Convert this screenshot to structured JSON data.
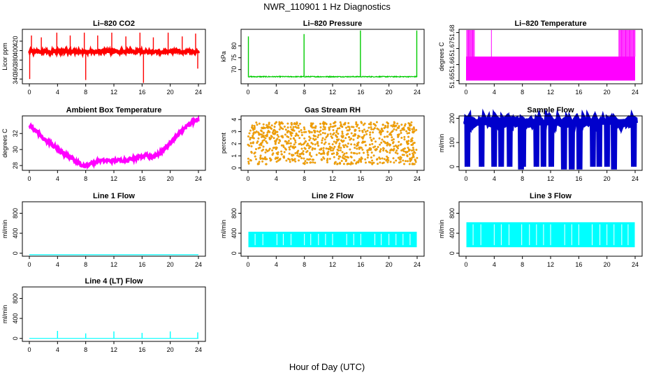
{
  "figure": {
    "title": "NWR_110901  1 Hz Diagnostics",
    "xlabel": "Hour of Day (UTC)"
  },
  "chart_data": [
    {
      "id": "co2",
      "type": "line",
      "title": "Li–820 CO2",
      "ylabel": "Licor ppm",
      "color": "#ff0000",
      "xlim": [
        0,
        24
      ],
      "xticks": [
        0,
        4,
        8,
        12,
        16,
        20,
        24
      ],
      "ylim": [
        330,
        445
      ],
      "yticks": [
        340,
        360,
        380,
        400,
        420
      ],
      "baseline": 398,
      "noise": 3,
      "spikes": [
        {
          "x": 0.05,
          "y": 340
        },
        {
          "x": 0.3,
          "y": 432
        },
        {
          "x": 1.7,
          "y": 428
        },
        {
          "x": 3.9,
          "y": 438
        },
        {
          "x": 5.8,
          "y": 432
        },
        {
          "x": 7.8,
          "y": 438
        },
        {
          "x": 8.0,
          "y": 338
        },
        {
          "x": 9.7,
          "y": 432
        },
        {
          "x": 11.7,
          "y": 438
        },
        {
          "x": 13.7,
          "y": 430
        },
        {
          "x": 15.7,
          "y": 438
        },
        {
          "x": 16.2,
          "y": 332
        },
        {
          "x": 17.6,
          "y": 428
        },
        {
          "x": 19.7,
          "y": 438
        },
        {
          "x": 21.7,
          "y": 430
        },
        {
          "x": 23.6,
          "y": 436
        },
        {
          "x": 23.9,
          "y": 362
        }
      ]
    },
    {
      "id": "pressure",
      "type": "line",
      "title": "Li–820 Pressure",
      "ylabel": "kPa",
      "color": "#00cc00",
      "xlim": [
        0,
        24
      ],
      "xticks": [
        0,
        4,
        8,
        12,
        16,
        20,
        24
      ],
      "ylim": [
        64,
        87
      ],
      "yticks": [
        70,
        75,
        80
      ],
      "baseline": 67,
      "noise": 0.2,
      "spikes": [
        {
          "x": 0.05,
          "y": 84
        },
        {
          "x": 7.95,
          "y": 85
        },
        {
          "x": 15.95,
          "y": 86.5
        },
        {
          "x": 23.95,
          "y": 86.5
        }
      ]
    },
    {
      "id": "licor_temp",
      "type": "area",
      "title": "Li–820 Temperature",
      "ylabel": "degrees C",
      "color": "#ff00ff",
      "xlim": [
        0,
        24
      ],
      "xticks": [
        0,
        4,
        8,
        12,
        16,
        20,
        24
      ],
      "ylim": [
        51.648,
        51.682
      ],
      "yticks": [
        51.65,
        51.66,
        51.67,
        51.68
      ],
      "fill_range": [
        51.65,
        51.665
      ],
      "spike_top": 51.682,
      "spike_windows": [
        [
          0.1,
          1.3
        ],
        [
          3.6,
          3.7
        ],
        [
          21.7,
          24.0
        ]
      ]
    },
    {
      "id": "box_temp",
      "type": "line",
      "title": "Ambient Box Temperature",
      "ylabel": "degrees C",
      "color": "#ff00ff",
      "xlim": [
        0,
        24
      ],
      "xticks": [
        0,
        4,
        8,
        12,
        16,
        20,
        24
      ],
      "ylim": [
        27.4,
        34.2
      ],
      "yticks": [
        28,
        30,
        32
      ],
      "x": [
        0,
        1,
        2,
        3,
        4,
        5,
        6,
        7,
        7.8,
        8.5,
        10,
        12,
        14,
        15.5,
        16.5,
        17.5,
        18.5,
        19.5,
        20.5,
        21.5,
        22.5,
        23.5,
        24
      ],
      "y": [
        33.0,
        32.3,
        31.4,
        30.7,
        30.0,
        29.4,
        28.9,
        28.3,
        27.9,
        28.2,
        28.6,
        28.6,
        28.7,
        29.1,
        29.3,
        29.0,
        29.6,
        30.4,
        31.3,
        32.2,
        33.0,
        33.6,
        33.7
      ],
      "noise": 0.2
    },
    {
      "id": "rh",
      "type": "scatter",
      "title": "Gas Stream RH",
      "ylabel": "percent",
      "color": "#ffa500",
      "edge_color": "#cc8800",
      "xlim": [
        0,
        24
      ],
      "xticks": [
        0,
        4,
        8,
        12,
        16,
        20,
        24
      ],
      "ylim": [
        -0.2,
        4.3
      ],
      "yticks": [
        0,
        1,
        2,
        3,
        4
      ],
      "range": [
        0.3,
        3.8
      ],
      "center": 2.0
    },
    {
      "id": "sample_flow",
      "type": "line",
      "title": "Sample Flow",
      "ylabel": "ml/min",
      "color": "#0000cc",
      "xlim": [
        0,
        24
      ],
      "xticks": [
        0,
        4,
        8,
        12,
        16,
        20,
        24
      ],
      "ylim": [
        -15,
        210
      ],
      "yticks": [
        0,
        100,
        200
      ],
      "baseline": 185,
      "noise": 12,
      "dropouts": [
        0.2,
        2.2,
        4.0,
        5.0,
        6.2,
        7.8,
        8.1,
        10.0,
        11.0,
        12.1,
        13.9,
        15.0,
        16.1,
        18.0,
        18.9,
        20.0,
        21.0,
        23.8
      ]
    },
    {
      "id": "line1",
      "type": "line",
      "title": "Line 1 Flow",
      "ylabel": "ml/min",
      "color": "#00ffff",
      "xlim": [
        0,
        24
      ],
      "xticks": [
        0,
        4,
        8,
        12,
        16,
        20,
        24
      ],
      "ylim": [
        -60,
        1030
      ],
      "yticks": [
        0,
        400,
        800
      ],
      "baseline": -30
    },
    {
      "id": "line2",
      "type": "line",
      "title": "Line 2 Flow",
      "ylabel": "ml/min",
      "color": "#00ffff",
      "xlim": [
        0,
        24
      ],
      "xticks": [
        0,
        4,
        8,
        12,
        16,
        20,
        24
      ],
      "ylim": [
        -60,
        1030
      ],
      "yticks": [
        0,
        400,
        800
      ],
      "range": [
        120,
        430
      ],
      "gaps": [
        1.0,
        2.1,
        4.1,
        5.0,
        6.1,
        8.0,
        8.9,
        10.0,
        11.0,
        12.0,
        14.0,
        15.0,
        16.0,
        18.0,
        18.9,
        20.0,
        21.0,
        22.0,
        23.0
      ]
    },
    {
      "id": "line3",
      "type": "line",
      "title": "Line 3 Flow",
      "ylabel": "ml/min",
      "color": "#00ffff",
      "xlim": [
        0,
        24
      ],
      "xticks": [
        0,
        4,
        8,
        12,
        16,
        20,
        24
      ],
      "ylim": [
        -60,
        1030
      ],
      "yticks": [
        0,
        400,
        800
      ],
      "range": [
        120,
        620
      ],
      "gaps": [
        1.0,
        2.1,
        4.0,
        5.0,
        6.1,
        7.9,
        9.0,
        10.0,
        11.0,
        12.0,
        14.0,
        15.0,
        16.0,
        17.9,
        19.0,
        20.0,
        21.0,
        22.1,
        23.0
      ]
    },
    {
      "id": "line4",
      "type": "line",
      "title": "Line 4 (LT) Flow",
      "ylabel": "ml/min",
      "color": "#00ffff",
      "xlim": [
        0,
        24
      ],
      "xticks": [
        0,
        4,
        8,
        12,
        16,
        20,
        24
      ],
      "ylim": [
        -60,
        1030
      ],
      "yticks": [
        0,
        400,
        800
      ],
      "baseline": 0,
      "spikes": [
        {
          "x": 4.0,
          "y": 150
        },
        {
          "x": 8.0,
          "y": 100
        },
        {
          "x": 12.0,
          "y": 140
        },
        {
          "x": 16.0,
          "y": 110
        },
        {
          "x": 20.0,
          "y": 140
        },
        {
          "x": 23.9,
          "y": 120
        }
      ]
    }
  ]
}
